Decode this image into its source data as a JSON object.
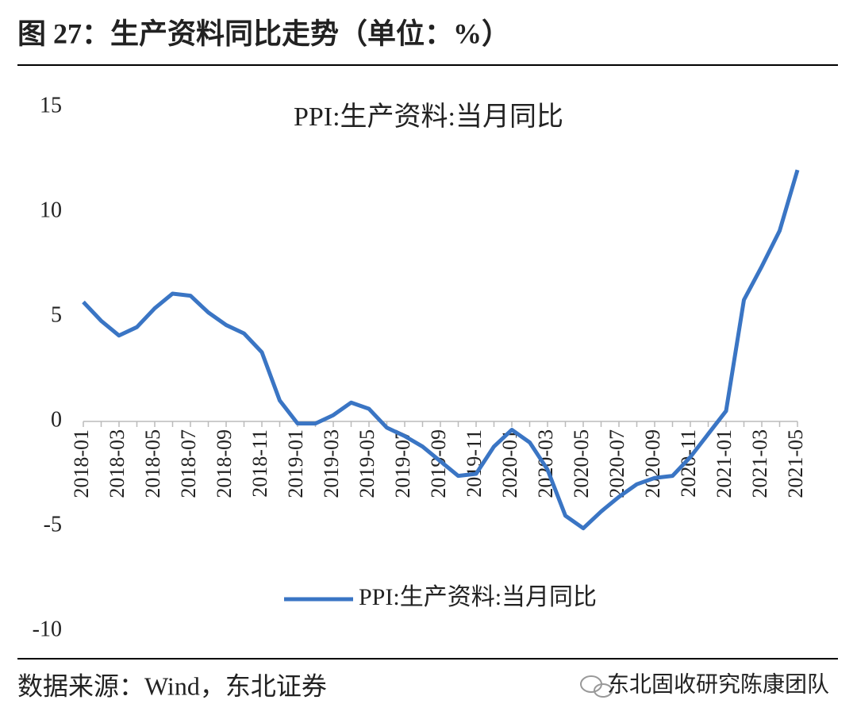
{
  "header": {
    "title": "图 27：生产资料同比走势（单位：%）"
  },
  "chart_data": {
    "type": "line",
    "title": "PPI:生产资料:当月同比",
    "categories": [
      "2018-01",
      null,
      "2018-03",
      null,
      "2018-05",
      null,
      "2018-07",
      null,
      "2018-09",
      null,
      "2018-11",
      null,
      "2019-01",
      null,
      "2019-03",
      null,
      "2019-05",
      null,
      "2019-07",
      null,
      "2019-09",
      null,
      "2019-11",
      null,
      "2020-01",
      null,
      "2020-03",
      null,
      "2020-05",
      null,
      "2020-07",
      null,
      "2020-09",
      null,
      "2020-11",
      null,
      "2021-01",
      null,
      "2021-03",
      null,
      "2021-05"
    ],
    "series": [
      {
        "name": "PPI:生产资料:当月同比",
        "color": "#3a75c4",
        "values": [
          5.7,
          4.8,
          4.1,
          4.5,
          5.4,
          6.1,
          6.0,
          5.2,
          4.6,
          4.2,
          3.3,
          1.0,
          -0.1,
          -0.1,
          0.3,
          0.9,
          0.6,
          -0.3,
          -0.7,
          -1.2,
          -1.9,
          -2.6,
          -2.5,
          -1.2,
          -0.4,
          -1.0,
          -2.3,
          -4.5,
          -5.1,
          -4.3,
          -3.6,
          -3.0,
          -2.7,
          -2.6,
          -1.7,
          -0.6,
          0.5,
          5.8,
          7.4,
          9.1,
          12.0
        ]
      }
    ],
    "ylim": [
      -10,
      15
    ],
    "yticks": [
      -10,
      -5,
      0,
      5,
      10,
      15
    ],
    "grid": false,
    "legend": "bottom"
  },
  "footer": {
    "source": "数据来源：Wind，东北证券",
    "watermark": "东北固收研究陈康团队"
  }
}
